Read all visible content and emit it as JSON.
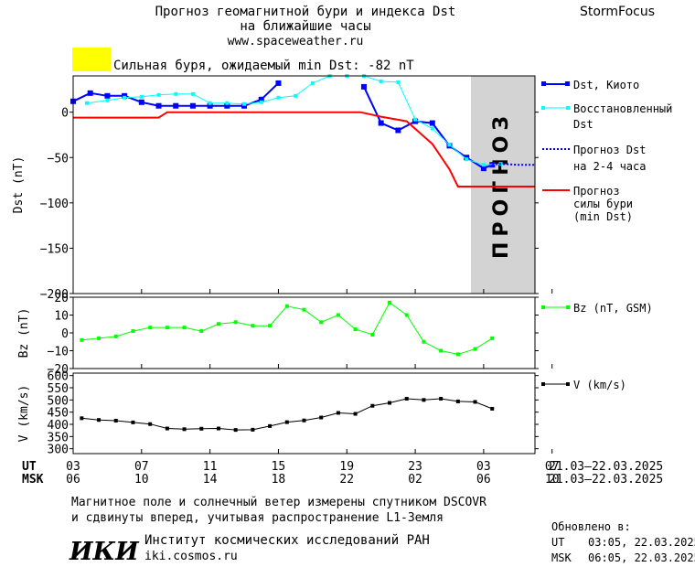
{
  "header": {
    "title_line1": "Прогноз геомагнитной бури и индекса Dst",
    "title_line2": "на ближайшие часы",
    "site": "www.spaceweather.ru",
    "brand": "StormFocus",
    "storm_text": "Сильная буря, ожидаемый min Dst: -82 nT",
    "storm_color": "#ffff00"
  },
  "chart_data": [
    {
      "type": "line",
      "ylabel": "Dst (nT)",
      "ylim": [
        -200,
        40
      ],
      "yticks": [
        0,
        -50,
        -100,
        -150,
        -200
      ],
      "xlim": [
        0,
        27
      ],
      "forecast_region": [
        24,
        27
      ],
      "forecast_label": "ПРОГНОЗ",
      "series": [
        {
          "name": "Dst, Киото",
          "color": "#0000ff",
          "marker": "square",
          "style": "solid",
          "segments": [
            [
              [
                0,
                12
              ],
              [
                1,
                21
              ],
              [
                2,
                18
              ],
              [
                3,
                18
              ],
              [
                4,
                11
              ],
              [
                5,
                7
              ],
              [
                6,
                7
              ],
              [
                7,
                7
              ],
              [
                8,
                7
              ],
              [
                9,
                7
              ],
              [
                10,
                7
              ],
              [
                11,
                14
              ],
              [
                12,
                32
              ]
            ],
            [
              [
                17,
                28
              ],
              [
                18,
                -12
              ],
              [
                19,
                -20
              ],
              [
                20,
                -10
              ],
              [
                21,
                -12
              ],
              [
                22,
                -37
              ],
              [
                23,
                -50
              ],
              [
                24,
                -62
              ],
              [
                24.5,
                -58
              ]
            ]
          ]
        },
        {
          "name": "Восстановленный Dst",
          "color": "#00ffff",
          "marker": "square",
          "style": "solid",
          "segments": [
            [
              [
                0.8,
                10
              ],
              [
                2,
                13
              ],
              [
                3,
                16
              ],
              [
                4,
                17
              ],
              [
                5,
                19
              ],
              [
                6,
                20
              ],
              [
                7,
                20
              ],
              [
                8,
                10
              ],
              [
                9,
                10
              ],
              [
                10,
                9
              ],
              [
                11,
                11
              ],
              [
                12,
                16
              ],
              [
                13,
                18
              ],
              [
                14,
                32
              ],
              [
                15,
                40
              ],
              [
                16,
                40
              ],
              [
                17,
                40
              ],
              [
                18,
                34
              ],
              [
                19,
                33
              ],
              [
                20,
                -8
              ],
              [
                21,
                -18
              ],
              [
                22,
                -36
              ],
              [
                23,
                -52
              ],
              [
                24,
                -58
              ],
              [
                25,
                -57
              ]
            ]
          ]
        },
        {
          "name": "Прогноз Dst на 2-4 часа",
          "color": "#0000ff",
          "marker": "none",
          "style": "dotted",
          "segments": [
            [
              [
                24.5,
                -58
              ],
              [
                25,
                -57
              ],
              [
                26,
                -58
              ],
              [
                27,
                -58
              ]
            ]
          ]
        },
        {
          "name": "Прогноз силы бури (min Dst)",
          "color": "#ff0000",
          "marker": "none",
          "style": "solid",
          "segments": [
            [
              [
                0,
                -6
              ],
              [
                5,
                -6
              ],
              [
                5.5,
                0
              ],
              [
                16.8,
                0
              ],
              [
                18,
                -5
              ],
              [
                19.5,
                -10
              ],
              [
                21,
                -35
              ],
              [
                22,
                -63
              ],
              [
                22.5,
                -82
              ],
              [
                27,
                -82
              ]
            ]
          ]
        }
      ]
    },
    {
      "type": "line",
      "ylabel": "Bz (nT)",
      "ylim": [
        -20,
        20
      ],
      "yticks": [
        20,
        10,
        0,
        -10,
        -20
      ],
      "series": [
        {
          "name": "Bz (nT, GSM)",
          "color": "#00ff00",
          "marker": "square",
          "style": "solid",
          "points": [
            [
              0.5,
              -4
            ],
            [
              1.5,
              -3
            ],
            [
              2.5,
              -2
            ],
            [
              3.5,
              1
            ],
            [
              4.5,
              3
            ],
            [
              5.5,
              3
            ],
            [
              6.5,
              3
            ],
            [
              7.5,
              1
            ],
            [
              8.5,
              5
            ],
            [
              9.5,
              6
            ],
            [
              10.5,
              4
            ],
            [
              11.5,
              4
            ],
            [
              12.5,
              15
            ],
            [
              13.5,
              13
            ],
            [
              14.5,
              6
            ],
            [
              15.5,
              10
            ],
            [
              16.5,
              2
            ],
            [
              17.5,
              -1
            ],
            [
              18.5,
              17
            ],
            [
              19.5,
              10
            ],
            [
              20.5,
              -5
            ],
            [
              21.5,
              -10
            ],
            [
              22.5,
              -12
            ],
            [
              23.5,
              -9
            ],
            [
              24.5,
              -3
            ]
          ]
        }
      ]
    },
    {
      "type": "line",
      "ylabel": "V (km/s)",
      "ylim": [
        280,
        610
      ],
      "yticks": [
        600,
        550,
        500,
        450,
        400,
        350,
        300
      ],
      "series": [
        {
          "name": "V (km/s)",
          "color": "#000000",
          "marker": "square",
          "style": "solid",
          "points": [
            [
              0.5,
              425
            ],
            [
              1.5,
              418
            ],
            [
              2.5,
              415
            ],
            [
              3.5,
              408
            ],
            [
              4.5,
              401
            ],
            [
              5.5,
              383
            ],
            [
              6.5,
              380
            ],
            [
              7.5,
              382
            ],
            [
              8.5,
              383
            ],
            [
              9.5,
              377
            ],
            [
              10.5,
              378
            ],
            [
              11.5,
              393
            ],
            [
              12.5,
              409
            ],
            [
              13.5,
              416
            ],
            [
              14.5,
              428
            ],
            [
              15.5,
              447
            ],
            [
              16.5,
              443
            ],
            [
              17.5,
              476
            ],
            [
              18.5,
              488
            ],
            [
              19.5,
              505
            ],
            [
              20.5,
              500
            ],
            [
              21.5,
              505
            ],
            [
              22.5,
              494
            ],
            [
              23.5,
              492
            ],
            [
              24.5,
              464
            ]
          ]
        }
      ]
    }
  ],
  "xaxis": {
    "ut_label": "UT",
    "msk_label": "MSK",
    "ut_ticks": [
      "03",
      "07",
      "11",
      "15",
      "19",
      "23",
      "03",
      "07"
    ],
    "msk_ticks": [
      "06",
      "10",
      "14",
      "18",
      "22",
      "02",
      "06",
      "10"
    ],
    "date_range_ut": "21.03–22.03.2025",
    "date_range_msk": "21.03–22.03.2025"
  },
  "legend": {
    "dst_kyoto": "Dst, Киото",
    "restored_1": "Восстановленный",
    "restored_2": "Dst",
    "forecast_1": "Прогноз Dst",
    "forecast_2": "на 2-4 часа",
    "storm_1": "Прогноз",
    "storm_2": "силы бури",
    "storm_3": "(min Dst)",
    "bz": "Bz (nT, GSM)",
    "v": "V (km/s)"
  },
  "footer": {
    "note_line1": "Магнитное поле и солнечный ветер измерены спутником DSCOVR",
    "note_line2": "и сдвинуты вперед, учитывая распространение L1-Земля",
    "updated_label": "Обновлено в:",
    "updated_ut_label": "UT",
    "updated_ut": "03:05, 22.03.2025",
    "updated_msk_label": "MSK",
    "updated_msk": "06:05, 22.03.2025",
    "logo_text": "ИКИ",
    "institute": "Институт космических исследований РАН",
    "institute_site": "iki.cosmos.ru"
  }
}
